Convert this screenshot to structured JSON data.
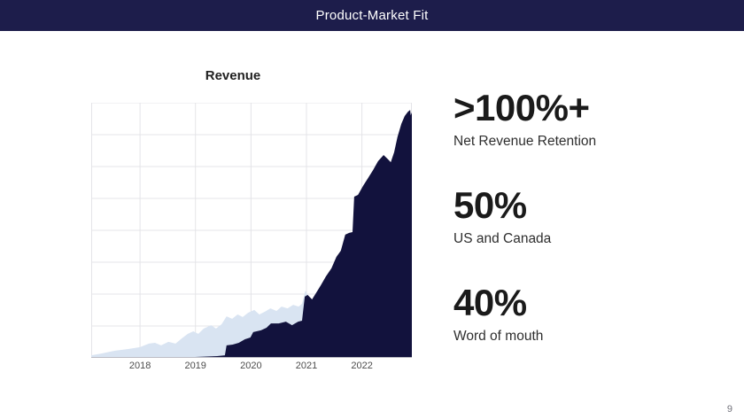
{
  "header": {
    "title": "Product-Market Fit"
  },
  "chart": {
    "title": "Revenue"
  },
  "chart_data": {
    "type": "area",
    "title": "Revenue",
    "x_tick_labels": [
      "2018",
      "2019",
      "2020",
      "2021",
      "2022"
    ],
    "x_tick_years": [
      2018,
      2019,
      2020,
      2021,
      2022
    ],
    "x_range": [
      2017.12,
      2022.9
    ],
    "y_range": [
      0,
      100
    ],
    "grid": true,
    "h_grid_step_pct": 12.5,
    "legend": "none",
    "series": [
      {
        "name": "light_blue_area",
        "color": "#d9e4f2",
        "x": [
          2017.12,
          2017.3,
          2017.55,
          2017.8,
          2018.0,
          2018.16,
          2018.27,
          2018.38,
          2018.51,
          2018.64,
          2018.75,
          2018.86,
          2018.96,
          2019.05,
          2019.15,
          2019.28,
          2019.37,
          2019.47,
          2019.56,
          2019.66,
          2019.76,
          2019.85,
          2019.95,
          2020.06,
          2020.15,
          2020.25,
          2020.35,
          2020.46,
          2020.55,
          2020.66,
          2020.76,
          2020.86,
          2020.92,
          2020.98,
          2021.06,
          2021.14,
          2021.25,
          2021.5,
          2021.75,
          2022.0,
          2022.3,
          2022.6,
          2022.9
        ],
        "y": [
          1.0,
          1.7,
          2.8,
          3.5,
          4.2,
          5.6,
          5.9,
          4.9,
          6.3,
          5.6,
          7.6,
          9.4,
          10.4,
          9.4,
          11.5,
          12.8,
          11.5,
          13.2,
          16.3,
          15.3,
          17.0,
          16.0,
          17.7,
          18.8,
          17.0,
          18.1,
          19.4,
          18.4,
          20.1,
          19.4,
          20.8,
          20.1,
          21.2,
          26.4,
          22.9,
          22.2,
          21.8,
          22.5,
          23.5,
          24.0,
          25.0,
          26.0,
          27.0
        ]
      },
      {
        "name": "dark_navy_area",
        "color": "#12123d",
        "x": [
          2018.94,
          2019.15,
          2019.39,
          2019.53,
          2019.56,
          2019.67,
          2019.78,
          2019.89,
          2019.99,
          2020.04,
          2020.18,
          2020.28,
          2020.36,
          2020.5,
          2020.63,
          2020.74,
          2020.85,
          2020.92,
          2020.97,
          2021.02,
          2021.1,
          2021.18,
          2021.26,
          2021.35,
          2021.45,
          2021.54,
          2021.62,
          2021.7,
          2021.77,
          2021.83,
          2021.86,
          2021.93,
          2022.02,
          2022.12,
          2022.2,
          2022.29,
          2022.39,
          2022.47,
          2022.52,
          2022.58,
          2022.64,
          2022.71,
          2022.77,
          2022.83,
          2022.87,
          2022.88,
          2022.9
        ],
        "y": [
          0.3,
          0.5,
          0.7,
          1.0,
          4.9,
          5.2,
          5.9,
          7.3,
          8.0,
          10.1,
          10.8,
          11.8,
          13.5,
          13.5,
          14.2,
          12.8,
          14.2,
          14.6,
          24.0,
          24.7,
          22.9,
          25.7,
          28.5,
          31.9,
          35.1,
          39.6,
          42.0,
          48.3,
          49.0,
          49.3,
          63.2,
          63.9,
          67.4,
          70.8,
          73.6,
          77.1,
          79.5,
          77.8,
          76.7,
          80.6,
          86.5,
          91.7,
          94.8,
          96.5,
          97.2,
          95.1,
          96.2
        ]
      }
    ]
  },
  "stats": [
    {
      "value": ">100%+",
      "label": "Net Revenue Retention"
    },
    {
      "value": "50%",
      "label": "US and Canada"
    },
    {
      "value": "40%",
      "label": "Word of mouth"
    }
  ],
  "footer": {
    "page_number": "9"
  },
  "colors": {
    "header_bg": "#1d1d4b",
    "dark_area": "#12123d",
    "light_area": "#d9e4f2",
    "gridline": "#e4e4e8",
    "axis_line": "#bcbcc4",
    "tick_text": "#4d4d4d",
    "page_number": "#71717a"
  }
}
